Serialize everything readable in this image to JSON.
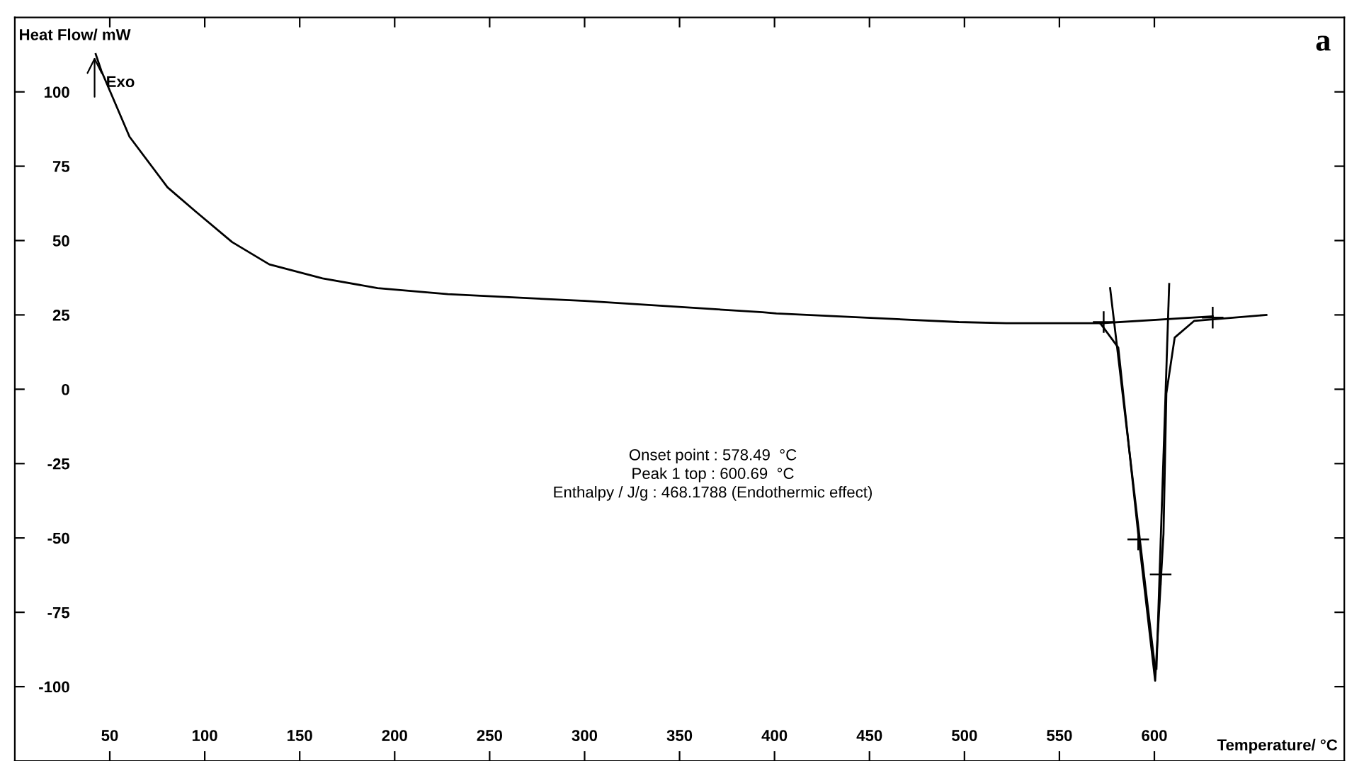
{
  "chart_data": {
    "type": "line",
    "xlabel": "Temperature/ °C",
    "ylabel": "Heat Flow/ mW",
    "xlim": [
      0,
      700
    ],
    "ylim": [
      -125,
      125
    ],
    "xticks": [
      50,
      100,
      150,
      200,
      250,
      300,
      350,
      400,
      450,
      500,
      550,
      600
    ],
    "yticks": [
      -100,
      -75,
      -50,
      -25,
      0,
      25,
      50,
      75,
      100
    ],
    "line_style": "solid",
    "marker": "none",
    "series": [
      {
        "color": "#000000",
        "x": [
          42.6,
          45.6,
          60.4,
          80.4,
          95,
          114.4,
          134,
          162,
          191,
          228,
          300,
          393.7,
          401,
          497,
          522,
          571.5,
          581,
          591.5,
          600.4,
          604.8,
          606.3,
          610.7,
          621,
          659
        ],
        "values": [
          112.7,
          107,
          84.9,
          67.9,
          59.9,
          49.5,
          42,
          37.3,
          34,
          32,
          29.7,
          25.9,
          25.5,
          22.6,
          22.2,
          22.2,
          14,
          -48.6,
          -98,
          -48.6,
          -1.4,
          17.4,
          23,
          25
        ]
      },
      {
        "color": "#000000",
        "x": [
          576.7,
          600.4
        ],
        "values": [
          34,
          -94
        ]
      },
      {
        "color": "#000000",
        "x": [
          607.8,
          601.1
        ],
        "values": [
          35.4,
          -94
        ]
      },
      {
        "color": "#000000",
        "x": [
          571.5,
          630.7
        ],
        "values": [
          22.2,
          24.5
        ]
      },
      {
        "type": "scatter",
        "marker": "cross",
        "color": "#000000",
        "x": [
          573.3,
          630.7,
          591.5,
          603.3
        ],
        "values": [
          22.6,
          24.1,
          -50.5,
          -62.3
        ]
      }
    ],
    "annotations": [
      {
        "text": "Exo",
        "x": 48,
        "y": 103
      },
      "a",
      "Onset point : 578.49  °C\nPeak 1 top : 600.69  °C\nEnthalpy / J/g : 468.1788 (Endothermic effect)"
    ]
  }
}
